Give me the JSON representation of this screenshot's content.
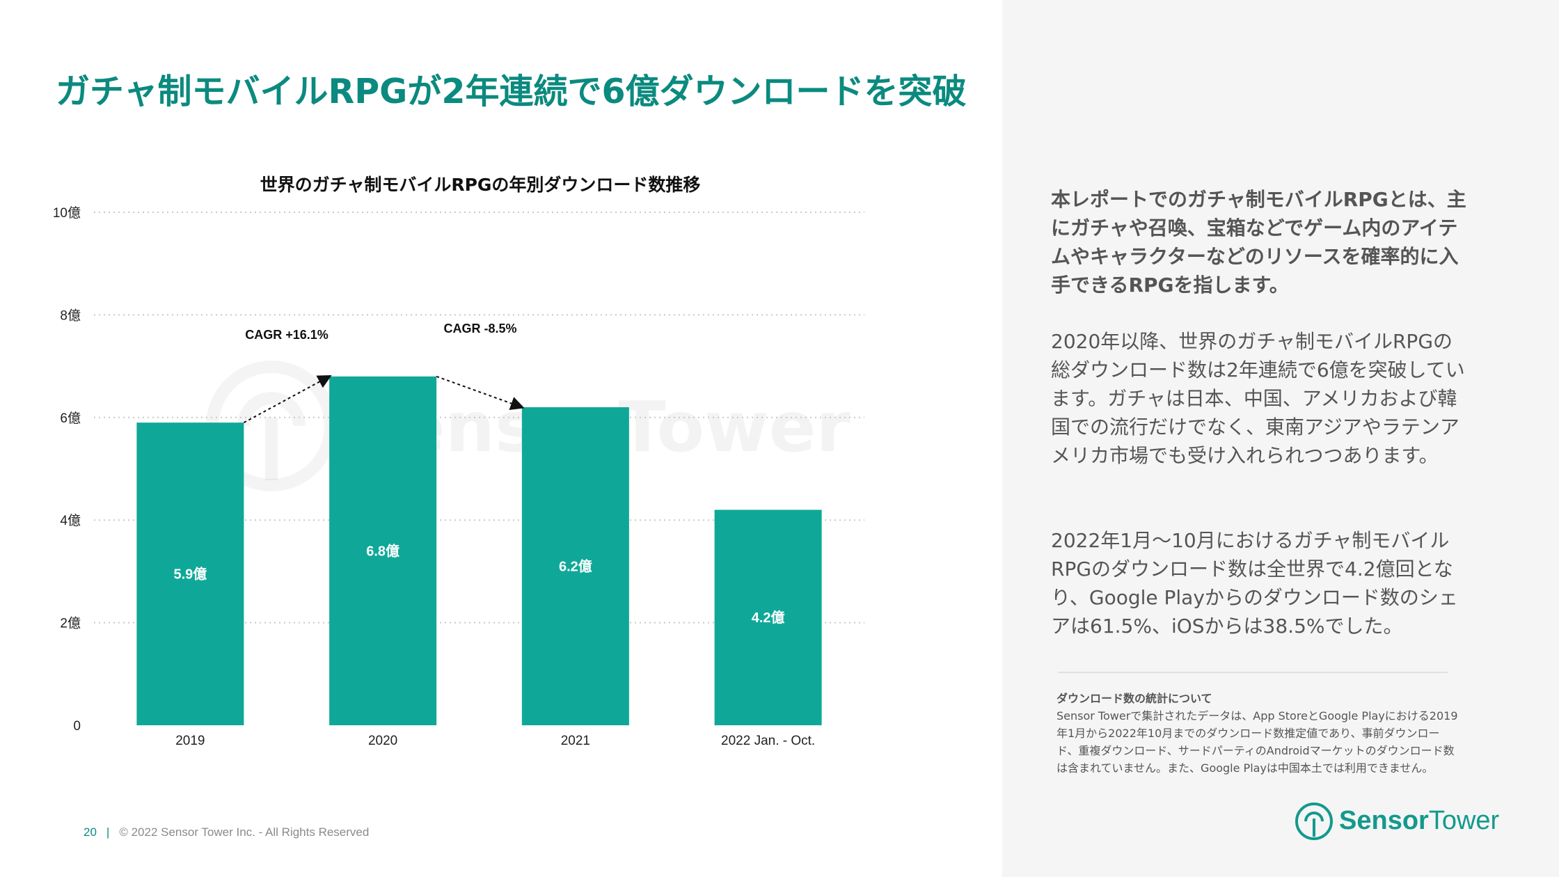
{
  "slide": {
    "title": "ガチャ制モバイルRPGが2年連続で6億ダウンロードを突破",
    "footer": {
      "page_number": "20",
      "separator": "|",
      "copyright": "© 2022 Sensor Tower Inc. - All Rights Reserved"
    }
  },
  "chart_data": {
    "type": "bar",
    "title": "世界のガチャ制モバイルRPGの年別ダウンロード数推移",
    "categories": [
      "2019",
      "2020",
      "2021",
      "2022 Jan. - Oct."
    ],
    "values": [
      5.9,
      6.8,
      6.2,
      4.2
    ],
    "value_labels": [
      "5.9億",
      "6.8億",
      "6.2億",
      "4.2億"
    ],
    "ylim": [
      0,
      10
    ],
    "yticks": [
      0,
      2,
      4,
      6,
      8,
      10
    ],
    "ytick_labels": [
      "0",
      "2億",
      "4億",
      "6億",
      "8億",
      "10億"
    ],
    "xlabel": "",
    "ylabel": "",
    "grid": true,
    "bar_color": "#0fa898",
    "annotations": [
      {
        "text": "CAGR +16.1%",
        "from": 0,
        "to": 1
      },
      {
        "text": "CAGR -8.5%",
        "from": 1,
        "to": 2
      }
    ]
  },
  "watermark": {
    "text": "SensorTower"
  },
  "side_text": {
    "p1": "本レポートでのガチャ制モバイルRPGとは、主にガチャや召喚、宝箱などでゲーム内のアイテムやキャラクターなどのリソースを確率的に入手できるRPGを指します。",
    "p2": "2020年以降、世界のガチャ制モバイルRPGの総ダウンロード数は2年連続で6億を突破しています。ガチャは日本、中国、アメリカおよび韓国での流行だけでなく、東南アジアやラテンアメリカ市場でも受け入れられつつあります。",
    "p3": "2022年1月〜10月におけるガチャ制モバイルRPGのダウンロード数は全世界で4.2億回となり、Google Playからのダウンロード数のシェアは61.5%、iOSからは38.5%でした。"
  },
  "note": {
    "heading": "ダウンロード数の統計について",
    "body": "Sensor Towerで集計されたデータは、App StoreとGoogle Playにおける2019年1月から2022年10月までのダウンロード数推定値であり、事前ダウンロード、重複ダウンロード、サードパーティのAndroidマーケットのダウンロード数は含まれていません。また、Google Playは中国本土では利用できません。"
  },
  "logo": {
    "text_bold": "Sensor",
    "text_light": "Tower",
    "color": "#13998d"
  },
  "colors": {
    "accent": "#0b8a7f",
    "bar": "#0fa898",
    "panel": "#f5f5f5"
  }
}
